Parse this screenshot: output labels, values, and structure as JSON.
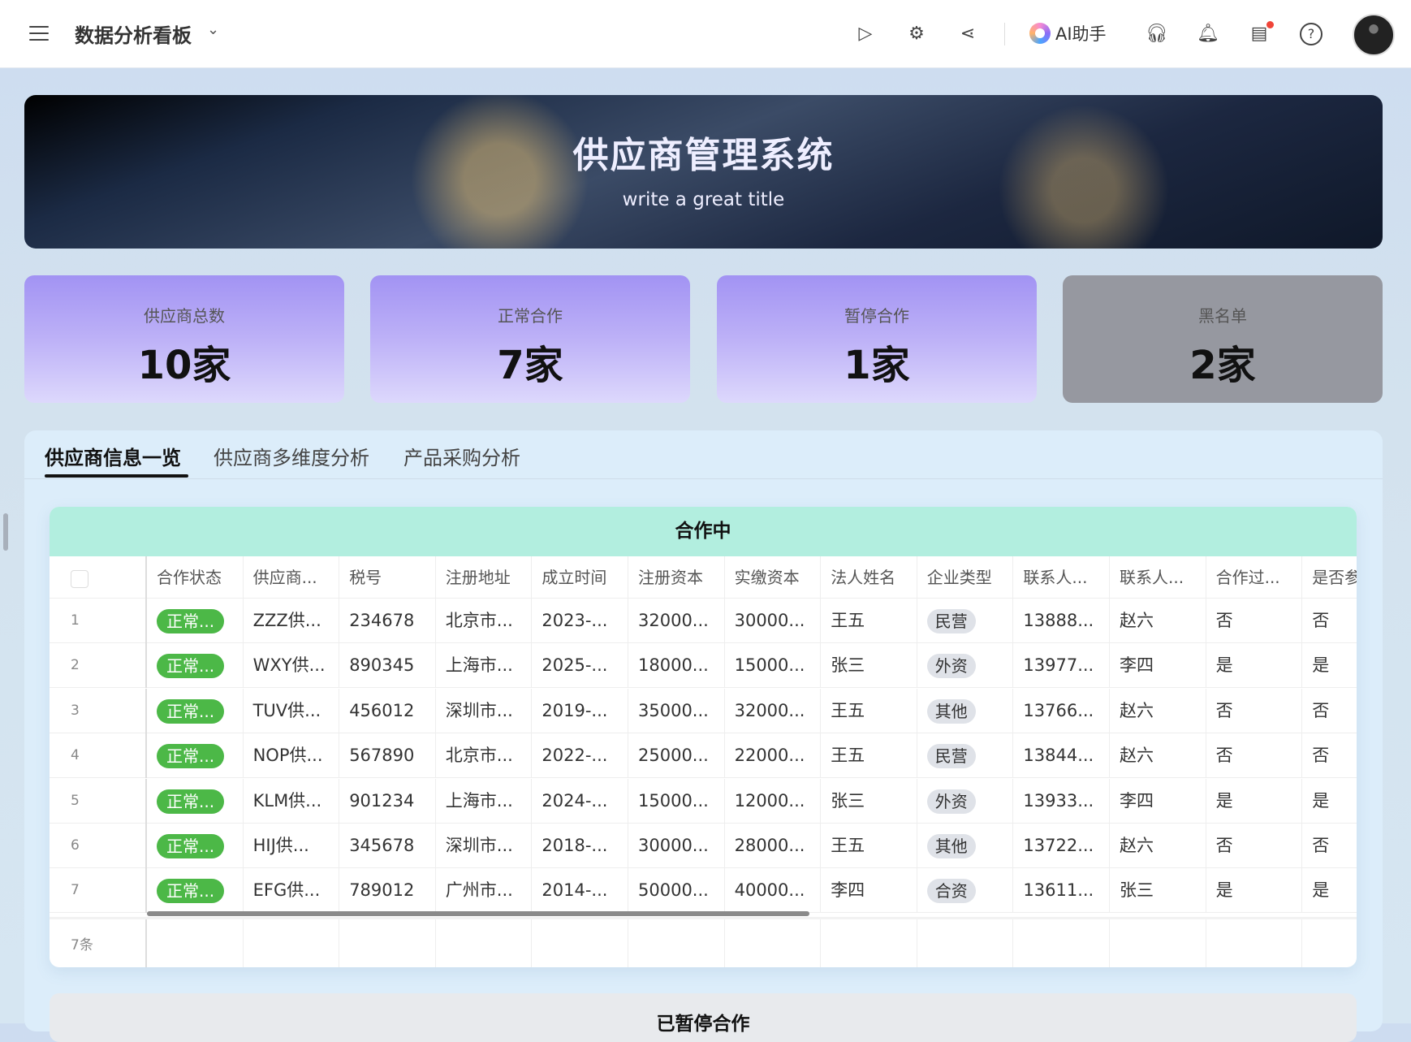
{
  "header": {
    "title": "数据分析看板",
    "ai_label": "AI助手",
    "icons": [
      "menu-icon",
      "play-icon",
      "sliders-icon",
      "share-icon",
      "headset-icon",
      "bell-icon",
      "inbox-icon",
      "help-icon"
    ]
  },
  "banner": {
    "title": "供应商管理系统",
    "subtitle": "write a great title"
  },
  "stats": [
    {
      "label": "供应商总数",
      "value": "10家"
    },
    {
      "label": "正常合作",
      "value": "7家"
    },
    {
      "label": "暂停合作",
      "value": "1家"
    },
    {
      "label": "黑名单",
      "value": "2家"
    }
  ],
  "tabs": [
    {
      "label": "供应商信息一览",
      "active": true
    },
    {
      "label": "供应商多维度分析"
    },
    {
      "label": "产品采购分析"
    }
  ],
  "table1": {
    "title": "合作中",
    "columns": [
      "合作状态",
      "供应商...",
      "税号",
      "注册地址",
      "成立时间",
      "注册资本",
      "实缴资本",
      "法人姓名",
      "企业类型",
      "联系人...",
      "联系人...",
      "合作过...",
      "是否参"
    ],
    "rows": [
      [
        "1",
        "正常...",
        "ZZZ供...",
        "234678",
        "北京市...",
        "2023-...",
        "32000...",
        "30000...",
        "王五",
        "民营",
        "13888...",
        "赵六",
        "否",
        "否"
      ],
      [
        "2",
        "正常...",
        "WXY供...",
        "890345",
        "上海市...",
        "2025-...",
        "18000...",
        "15000...",
        "张三",
        "外资",
        "13977...",
        "李四",
        "是",
        "是"
      ],
      [
        "3",
        "正常...",
        "TUV供...",
        "456012",
        "深圳市...",
        "2019-...",
        "35000...",
        "32000...",
        "王五",
        "其他",
        "13766...",
        "赵六",
        "否",
        "否"
      ],
      [
        "4",
        "正常...",
        "NOP供...",
        "567890",
        "北京市...",
        "2022-...",
        "25000...",
        "22000...",
        "王五",
        "民营",
        "13844...",
        "赵六",
        "否",
        "否"
      ],
      [
        "5",
        "正常...",
        "KLM供...",
        "901234",
        "上海市...",
        "2024-...",
        "15000...",
        "12000...",
        "张三",
        "外资",
        "13933...",
        "李四",
        "是",
        "是"
      ],
      [
        "6",
        "正常...",
        "HIJ供...",
        "345678",
        "深圳市...",
        "2018-...",
        "30000...",
        "28000...",
        "王五",
        "其他",
        "13722...",
        "赵六",
        "否",
        "否"
      ],
      [
        "7",
        "正常...",
        "EFG供...",
        "789012",
        "广州市...",
        "2014-...",
        "50000...",
        "40000...",
        "李四",
        "合资",
        "13611...",
        "张三",
        "是",
        "是"
      ]
    ],
    "footer": "7条"
  },
  "table2": {
    "title": "已暂停合作"
  },
  "colors": {
    "status_green": "#4cb847",
    "card_header": "#b2eedf",
    "stat_purple": "#a293f3",
    "stat_gray": "#9698a0"
  }
}
